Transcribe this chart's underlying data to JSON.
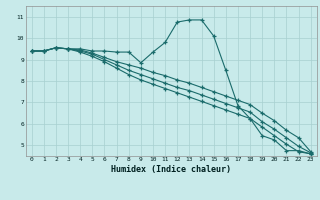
{
  "xlabel": "Humidex (Indice chaleur)",
  "bg_color": "#c8eaea",
  "grid_color": "#a8d0d0",
  "line_color": "#1a6b6b",
  "xlim": [
    -0.5,
    23.5
  ],
  "ylim": [
    4.5,
    11.5
  ],
  "xticks": [
    0,
    1,
    2,
    3,
    4,
    5,
    6,
    7,
    8,
    9,
    10,
    11,
    12,
    13,
    14,
    15,
    16,
    17,
    18,
    19,
    20,
    21,
    22,
    23
  ],
  "yticks": [
    5,
    6,
    7,
    8,
    9,
    10,
    11
  ],
  "line1_x": [
    0,
    1,
    2,
    3,
    4,
    5,
    6,
    7,
    8,
    9,
    10,
    11,
    12,
    13,
    14,
    15,
    16,
    17,
    18,
    19,
    20,
    21,
    22,
    23
  ],
  "line1_y": [
    9.4,
    9.4,
    9.55,
    9.5,
    9.5,
    9.4,
    9.4,
    9.35,
    9.35,
    8.85,
    9.35,
    9.8,
    10.75,
    10.85,
    10.85,
    10.1,
    8.5,
    6.85,
    6.25,
    5.45,
    5.25,
    4.75,
    4.75,
    4.6
  ],
  "line2_x": [
    0,
    1,
    2,
    3,
    4,
    5,
    6,
    7,
    8,
    9,
    10,
    11,
    12,
    13,
    14,
    15,
    16,
    17,
    18,
    19,
    20,
    21,
    22,
    23
  ],
  "line2_y": [
    9.4,
    9.4,
    9.55,
    9.5,
    9.45,
    9.3,
    9.1,
    8.9,
    8.75,
    8.6,
    8.4,
    8.25,
    8.05,
    7.9,
    7.7,
    7.5,
    7.3,
    7.1,
    6.9,
    6.5,
    6.15,
    5.7,
    5.35,
    4.7
  ],
  "line3_x": [
    0,
    1,
    2,
    3,
    4,
    5,
    6,
    7,
    8,
    9,
    10,
    11,
    12,
    13,
    14,
    15,
    16,
    17,
    18,
    19,
    20,
    21,
    22,
    23
  ],
  "line3_y": [
    9.4,
    9.4,
    9.55,
    9.5,
    9.4,
    9.25,
    9.0,
    8.75,
    8.5,
    8.3,
    8.1,
    7.9,
    7.7,
    7.55,
    7.35,
    7.15,
    6.95,
    6.75,
    6.55,
    6.1,
    5.75,
    5.35,
    4.95,
    4.65
  ],
  "line4_x": [
    0,
    1,
    2,
    3,
    4,
    5,
    6,
    7,
    8,
    9,
    10,
    11,
    12,
    13,
    14,
    15,
    16,
    17,
    18,
    19,
    20,
    21,
    22,
    23
  ],
  "line4_y": [
    9.4,
    9.4,
    9.55,
    9.5,
    9.35,
    9.15,
    8.9,
    8.6,
    8.3,
    8.05,
    7.85,
    7.65,
    7.45,
    7.25,
    7.05,
    6.85,
    6.65,
    6.45,
    6.25,
    5.85,
    5.45,
    5.05,
    4.7,
    4.6
  ]
}
